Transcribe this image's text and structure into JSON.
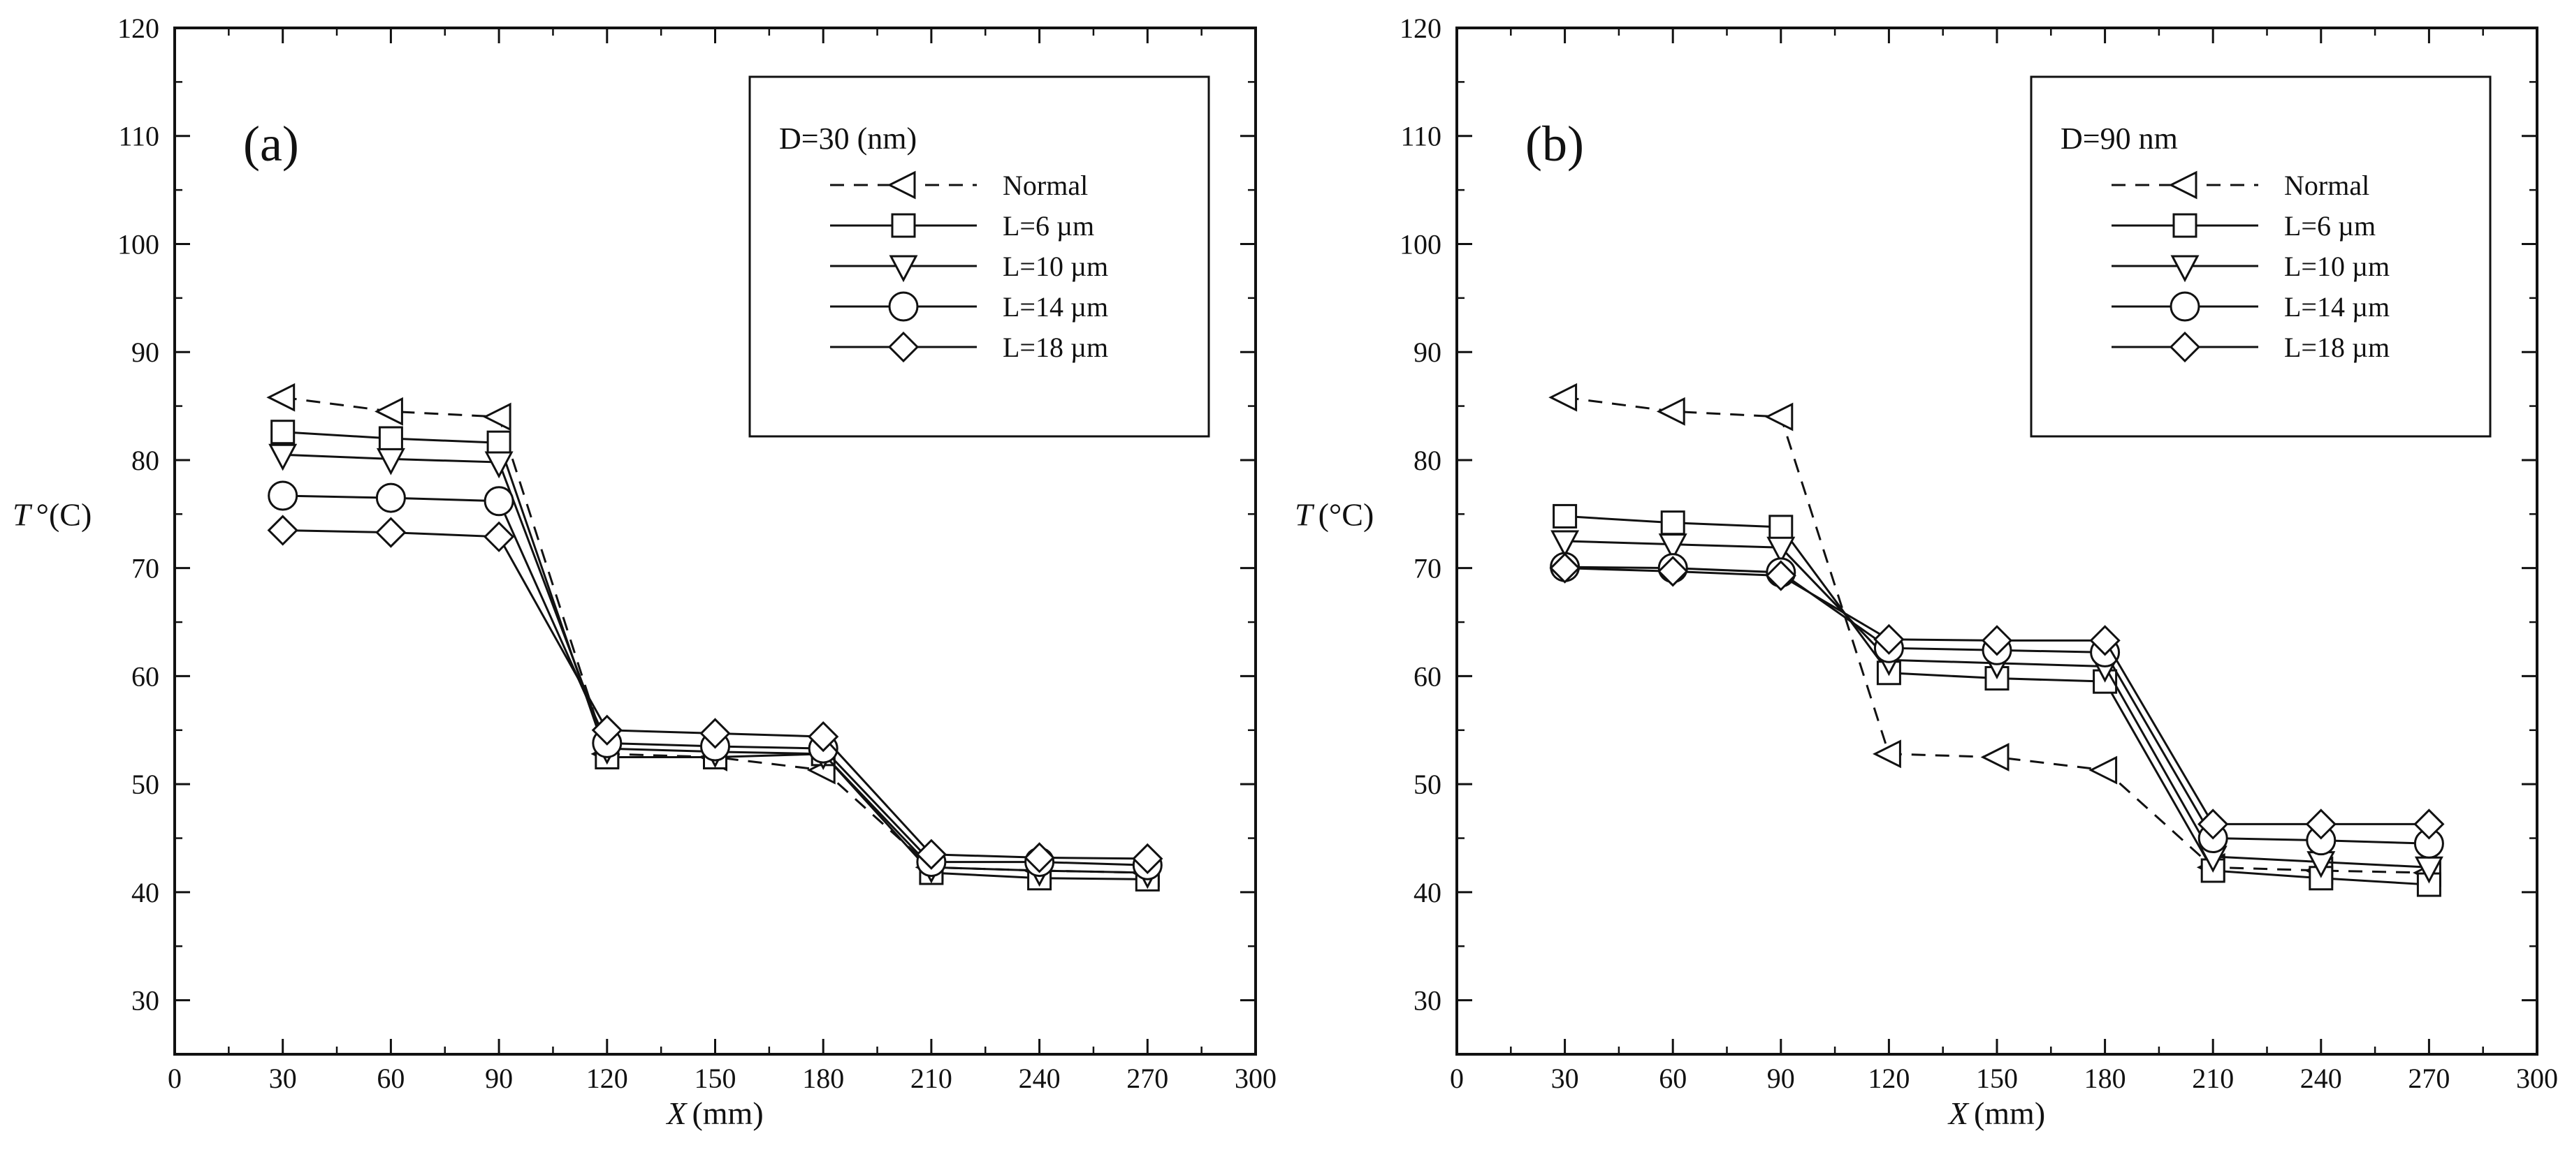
{
  "chart_data": [
    {
      "type": "line",
      "panel_label": "(a)",
      "legend_title": "D=30 (nm)",
      "xlabel_var": "X",
      "xlabel_unit": "(mm)",
      "ylabel_var": "T",
      "ylabel_unit": "°(C)",
      "xlim": [
        0,
        300
      ],
      "ylim": [
        25,
        120
      ],
      "xticks": [
        0,
        30,
        60,
        90,
        120,
        150,
        180,
        210,
        240,
        270,
        300
      ],
      "yticks": [
        30,
        40,
        50,
        60,
        70,
        80,
        90,
        100,
        110,
        120
      ],
      "x": [
        30,
        60,
        90,
        120,
        150,
        180,
        210,
        240,
        270
      ],
      "series": [
        {
          "name": "Normal",
          "marker": "triangle-left",
          "dashed": true,
          "values": [
            85.8,
            84.5,
            84.0,
            52.8,
            52.5,
            51.3,
            42.3,
            42.0,
            41.8
          ]
        },
        {
          "name": "L=6 µm",
          "marker": "square",
          "dashed": false,
          "values": [
            82.6,
            82.0,
            81.6,
            52.5,
            52.5,
            52.8,
            41.8,
            41.3,
            41.2
          ]
        },
        {
          "name": "L=10 µm",
          "marker": "triangle-down",
          "dashed": false,
          "values": [
            80.5,
            80.1,
            79.8,
            53.3,
            53.0,
            52.8,
            42.3,
            42.0,
            41.8
          ]
        },
        {
          "name": "L=14 µm",
          "marker": "circle",
          "dashed": false,
          "values": [
            76.7,
            76.5,
            76.2,
            53.8,
            53.5,
            53.3,
            42.8,
            42.8,
            42.5
          ]
        },
        {
          "name": "L=18 µm",
          "marker": "diamond",
          "dashed": false,
          "values": [
            73.5,
            73.3,
            72.9,
            55.0,
            54.7,
            54.4,
            43.5,
            43.2,
            43.1
          ]
        }
      ]
    },
    {
      "type": "line",
      "panel_label": "(b)",
      "legend_title": "D=90 nm",
      "xlabel_var": "X",
      "xlabel_unit": "(mm)",
      "ylabel_var": "T",
      "ylabel_unit": "(°C)",
      "xlim": [
        0,
        300
      ],
      "ylim": [
        25,
        120
      ],
      "xticks": [
        0,
        30,
        60,
        90,
        120,
        150,
        180,
        210,
        240,
        270,
        300
      ],
      "yticks": [
        30,
        40,
        50,
        60,
        70,
        80,
        90,
        100,
        110,
        120
      ],
      "x": [
        30,
        60,
        90,
        120,
        150,
        180,
        210,
        240,
        270
      ],
      "series": [
        {
          "name": "Normal",
          "marker": "triangle-left",
          "dashed": true,
          "values": [
            85.8,
            84.5,
            84.0,
            52.8,
            52.5,
            51.3,
            42.3,
            42.0,
            41.8
          ]
        },
        {
          "name": "L=6 µm",
          "marker": "square",
          "dashed": false,
          "values": [
            74.8,
            74.2,
            73.8,
            60.3,
            59.8,
            59.5,
            42.0,
            41.3,
            40.7
          ]
        },
        {
          "name": "L=10 µm",
          "marker": "triangle-down",
          "dashed": false,
          "values": [
            72.5,
            72.2,
            71.9,
            61.5,
            61.2,
            60.9,
            43.3,
            42.8,
            42.3
          ]
        },
        {
          "name": "L=14 µm",
          "marker": "circle",
          "dashed": false,
          "values": [
            70.1,
            70.0,
            69.6,
            62.6,
            62.4,
            62.2,
            45.0,
            44.8,
            44.5
          ]
        },
        {
          "name": "L=18 µm",
          "marker": "diamond",
          "dashed": false,
          "values": [
            70.0,
            69.7,
            69.3,
            63.4,
            63.3,
            63.3,
            46.3,
            46.3,
            46.3
          ]
        }
      ]
    }
  ]
}
